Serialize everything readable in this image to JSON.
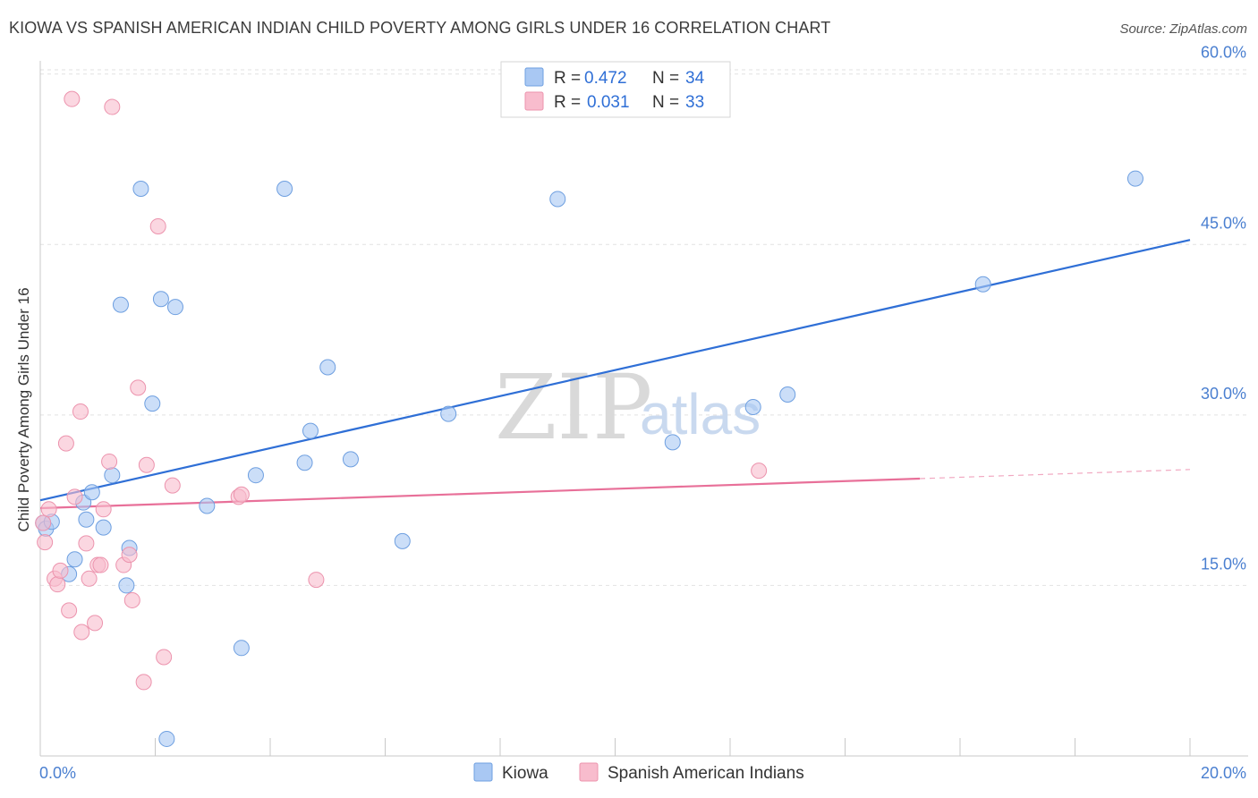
{
  "title": "KIOWA VS SPANISH AMERICAN INDIAN CHILD POVERTY AMONG GIRLS UNDER 16 CORRELATION CHART",
  "source": "Source: ZipAtlas.com",
  "watermark": {
    "zip": "ZIP",
    "atlas": "atlas"
  },
  "colors": {
    "kiowa_fill": "#a9c8f3",
    "kiowa_stroke": "#6e9fe0",
    "kiowa_line": "#2f6fd6",
    "spanish_fill": "#f8bccd",
    "spanish_stroke": "#ec93ad",
    "spanish_line": "#e87099",
    "grid": "#e2e2e2",
    "tick_label": "#4a7fd0"
  },
  "legend": {
    "rows": [
      {
        "r_label": "R =",
        "r_value": "0.472",
        "n_label": "N =",
        "n_value": "34"
      },
      {
        "r_label": "R =",
        "r_value": "0.031",
        "n_label": "N =",
        "n_value": "33"
      }
    ]
  },
  "chart_data": {
    "type": "scatter",
    "title": "KIOWA VS SPANISH AMERICAN INDIAN CHILD POVERTY AMONG GIRLS UNDER 16 CORRELATION CHART",
    "xlabel": "",
    "ylabel": "Child Poverty Among Girls Under 16",
    "xlim": [
      0,
      20
    ],
    "ylim": [
      0,
      61
    ],
    "x_tick_labels": [
      "0.0%",
      "20.0%"
    ],
    "y_ticks": [
      15,
      30,
      45,
      60
    ],
    "y_tick_labels": [
      "15.0%",
      "30.0%",
      "45.0%",
      "60.0%"
    ],
    "grid": true,
    "series": [
      {
        "name": "Kiowa",
        "points": [
          [
            0.05,
            20.5
          ],
          [
            0.1,
            20
          ],
          [
            0.2,
            20.6
          ],
          [
            0.5,
            16
          ],
          [
            0.6,
            17.3
          ],
          [
            0.75,
            22.3
          ],
          [
            0.8,
            20.8
          ],
          [
            0.9,
            23.2
          ],
          [
            1.1,
            20.1
          ],
          [
            1.25,
            24.7
          ],
          [
            1.4,
            39.7
          ],
          [
            1.5,
            15.0
          ],
          [
            1.55,
            18.3
          ],
          [
            1.75,
            49.9
          ],
          [
            1.95,
            31.0
          ],
          [
            2.1,
            40.2
          ],
          [
            2.2,
            1.5
          ],
          [
            2.35,
            39.5
          ],
          [
            2.9,
            22.0
          ],
          [
            3.5,
            9.5
          ],
          [
            3.75,
            24.7
          ],
          [
            4.25,
            49.9
          ],
          [
            4.6,
            25.8
          ],
          [
            4.7,
            28.6
          ],
          [
            5.0,
            34.2
          ],
          [
            5.4,
            26.1
          ],
          [
            6.3,
            18.9
          ],
          [
            7.1,
            30.1
          ],
          [
            9.0,
            49.0
          ],
          [
            11.0,
            27.6
          ],
          [
            12.4,
            30.7
          ],
          [
            13.0,
            31.8
          ],
          [
            16.4,
            41.5
          ],
          [
            19.05,
            50.8
          ]
        ],
        "trend": {
          "x": [
            0,
            20
          ],
          "y": [
            22.5,
            45.4
          ]
        }
      },
      {
        "name": "Spanish American Indians",
        "points": [
          [
            0.05,
            20.5
          ],
          [
            0.08,
            18.8
          ],
          [
            0.15,
            21.7
          ],
          [
            0.25,
            15.6
          ],
          [
            0.3,
            15.1
          ],
          [
            0.35,
            16.3
          ],
          [
            0.45,
            27.5
          ],
          [
            0.5,
            12.8
          ],
          [
            0.55,
            57.8
          ],
          [
            0.6,
            22.8
          ],
          [
            0.7,
            30.3
          ],
          [
            0.72,
            10.9
          ],
          [
            0.8,
            18.7
          ],
          [
            0.85,
            15.6
          ],
          [
            0.95,
            11.7
          ],
          [
            1.0,
            16.8
          ],
          [
            1.05,
            16.8
          ],
          [
            1.1,
            21.7
          ],
          [
            1.2,
            25.9
          ],
          [
            1.25,
            57.1
          ],
          [
            1.45,
            16.8
          ],
          [
            1.55,
            17.7
          ],
          [
            1.6,
            13.7
          ],
          [
            1.7,
            32.4
          ],
          [
            1.8,
            6.5
          ],
          [
            1.85,
            25.6
          ],
          [
            2.05,
            46.6
          ],
          [
            2.15,
            8.7
          ],
          [
            2.3,
            23.8
          ],
          [
            3.45,
            22.8
          ],
          [
            3.5,
            23.0
          ],
          [
            4.8,
            15.5
          ],
          [
            12.5,
            25.1
          ]
        ],
        "trend": {
          "x": [
            0,
            20
          ],
          "y": [
            21.8,
            25.2
          ],
          "solid_until": 15.3
        }
      }
    ]
  }
}
